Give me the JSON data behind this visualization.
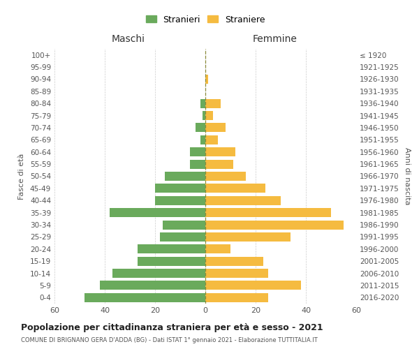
{
  "age_groups": [
    "100+",
    "95-99",
    "90-94",
    "85-89",
    "80-84",
    "75-79",
    "70-74",
    "65-69",
    "60-64",
    "55-59",
    "50-54",
    "45-49",
    "40-44",
    "35-39",
    "30-34",
    "25-29",
    "20-24",
    "15-19",
    "10-14",
    "5-9",
    "0-4"
  ],
  "birth_years": [
    "≤ 1920",
    "1921-1925",
    "1926-1930",
    "1931-1935",
    "1936-1940",
    "1941-1945",
    "1946-1950",
    "1951-1955",
    "1956-1960",
    "1961-1965",
    "1966-1970",
    "1971-1975",
    "1976-1980",
    "1981-1985",
    "1986-1990",
    "1991-1995",
    "1996-2000",
    "2001-2005",
    "2006-2010",
    "2011-2015",
    "2016-2020"
  ],
  "males": [
    0,
    0,
    0,
    0,
    2,
    1,
    4,
    2,
    6,
    6,
    16,
    20,
    20,
    38,
    17,
    18,
    27,
    27,
    37,
    42,
    48
  ],
  "females": [
    0,
    0,
    1,
    0,
    6,
    3,
    8,
    5,
    12,
    11,
    16,
    24,
    30,
    50,
    55,
    34,
    10,
    23,
    25,
    38,
    25
  ],
  "male_color": "#6aaa5c",
  "female_color": "#f5bb40",
  "grid_color": "#cccccc",
  "dashed_line_color": "#8b8b3a",
  "title": "Popolazione per cittadinanza straniera per età e sesso - 2021",
  "subtitle": "COMUNE DI BRIGNANO GERA D'ADDA (BG) - Dati ISTAT 1° gennaio 2021 - Elaborazione TUTTITALIA.IT",
  "left_label": "Maschi",
  "right_label": "Femmine",
  "y_left_label": "Fasce di età",
  "y_right_label": "Anni di nascita",
  "legend_males": "Stranieri",
  "legend_females": "Straniere",
  "xlim": 60,
  "background_color": "#ffffff"
}
